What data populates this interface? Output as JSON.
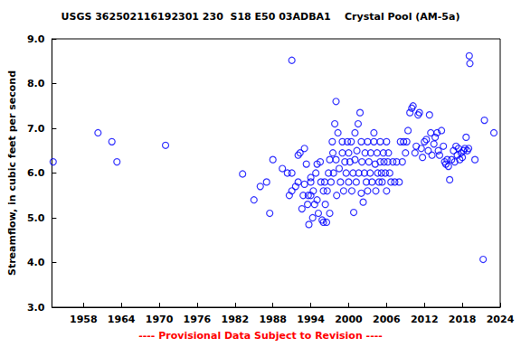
{
  "chart_data": {
    "type": "scatter",
    "title": "USGS 362502116192301 230  S18 E50 03ADBA1    Crystal Pool (AM-5a)",
    "annotation": "---- Provisional Data Subject to Revision ----",
    "y_label": "Streamflow, in cubic feet per second",
    "color": "#0000ff",
    "marker": "open_circle",
    "grid": false,
    "xlim": [
      1953,
      2024
    ],
    "xticks": [
      1958,
      1964,
      1970,
      1976,
      1982,
      1988,
      1994,
      2000,
      2006,
      2012,
      2018,
      2024
    ],
    "ylim": [
      3,
      9
    ],
    "yticks": [
      {
        "value": 3,
        "label": "3.0"
      },
      {
        "value": 4,
        "label": "4.0"
      },
      {
        "value": 5,
        "label": "5.0"
      },
      {
        "value": 6,
        "label": "6.0"
      },
      {
        "value": 7,
        "label": "7.0"
      },
      {
        "value": 8,
        "label": "8.0"
      },
      {
        "value": 9,
        "label": "9.0"
      }
    ],
    "x": [
      1953.2,
      1960.3,
      1962.5,
      1963.3,
      1971,
      1983.2,
      1985,
      1986,
      1987,
      1987.5,
      1988,
      1989.5,
      1990.3,
      1990.6,
      1991,
      1991,
      1991,
      1991.6,
      1992,
      1992,
      1992.3,
      1992.6,
      1992.8,
      1993,
      1993,
      1993.3,
      1993.5,
      1993.6,
      1993.7,
      1994,
      1994,
      1994,
      1994.3,
      1994.4,
      1994.6,
      1994.8,
      1995,
      1995,
      1995.2,
      1995.5,
      1995.6,
      1995.8,
      1996,
      1996,
      1996.2,
      1996.3,
      1996.5,
      1996.6,
      1996.8,
      1997,
      1997,
      1997.2,
      1997.4,
      1997.5,
      1997.6,
      1997.8,
      1998,
      1998,
      1998.1,
      1998.3,
      1998.5,
      1998.7,
      1999,
      1999,
      1999.2,
      1999.4,
      1999.6,
      1999.8,
      2000,
      2000,
      2000.2,
      2000.4,
      2000.5,
      2000.7,
      2000.8,
      2001,
      2001,
      2001.2,
      2001.3,
      2001.5,
      2001.6,
      2001.8,
      2002,
      2002,
      2002.1,
      2002.3,
      2002.5,
      2002.6,
      2002.8,
      2003,
      2003,
      2003.2,
      2003.4,
      2003.5,
      2003.7,
      2004,
      2004,
      2004.2,
      2004.3,
      2004.5,
      2004.6,
      2004.8,
      2005,
      2005,
      2005.2,
      2005.3,
      2005.5,
      2005.6,
      2005.8,
      2006,
      2006,
      2006.2,
      2006.3,
      2006.5,
      2006.7,
      2007,
      2007.3,
      2007.6,
      2008,
      2008.2,
      2008.5,
      2008.7,
      2009,
      2009.2,
      2009.4,
      2009.7,
      2010,
      2010.2,
      2010.5,
      2010.7,
      2011,
      2011.2,
      2011.5,
      2011.7,
      2012,
      2012.3,
      2012.6,
      2012.8,
      2013,
      2013.2,
      2013.5,
      2013.7,
      2014,
      2014.2,
      2014.4,
      2014.7,
      2015,
      2015.2,
      2015.4,
      2015.6,
      2015.8,
      2016,
      2016.3,
      2016.6,
      2016.8,
      2017,
      2017.2,
      2017.4,
      2017.6,
      2017.8,
      2018,
      2018.2,
      2018.4,
      2018.6,
      2018.8,
      2019,
      2019.1,
      2019.2,
      2020,
      2021.3,
      2021.5,
      2023
    ],
    "values": [
      6.25,
      6.9,
      6.7,
      6.25,
      6.62,
      5.98,
      5.4,
      5.7,
      5.8,
      5.1,
      6.3,
      6.1,
      6.0,
      5.5,
      8.52,
      5.6,
      6.0,
      5.7,
      5.8,
      6.4,
      6.45,
      5.2,
      5.5,
      6.55,
      5.75,
      6.2,
      5.3,
      5.5,
      4.85,
      5.9,
      5.8,
      5.5,
      5.0,
      5.6,
      5.3,
      6.0,
      6.2,
      5.4,
      5.1,
      6.25,
      5.8,
      4.95,
      4.9,
      5.6,
      5.8,
      5.3,
      4.9,
      5.6,
      6.0,
      6.3,
      5.1,
      5.8,
      6.7,
      6.45,
      6.0,
      7.1,
      7.6,
      6.3,
      5.5,
      6.9,
      6.1,
      5.8,
      6.45,
      6.7,
      5.6,
      6.25,
      6.0,
      6.7,
      6.45,
      5.8,
      6.25,
      6.7,
      5.6,
      6.0,
      5.12,
      6.9,
      6.3,
      5.8,
      6.5,
      7.1,
      6.0,
      7.35,
      6.7,
      5.55,
      6.25,
      5.35,
      6.0,
      6.45,
      5.8,
      6.7,
      5.6,
      6.25,
      6.0,
      6.45,
      5.8,
      6.9,
      6.7,
      6.2,
      5.6,
      6.45,
      6.0,
      5.8,
      6.7,
      6.25,
      6.0,
      5.8,
      6.45,
      6.25,
      6.0,
      5.6,
      6.7,
      6.25,
      6.45,
      6.0,
      5.8,
      6.25,
      5.8,
      6.25,
      5.8,
      6.7,
      6.25,
      6.7,
      6.45,
      6.7,
      6.95,
      7.35,
      7.45,
      7.5,
      6.45,
      6.6,
      7.3,
      7.35,
      6.55,
      6.35,
      6.7,
      6.75,
      6.5,
      7.3,
      6.9,
      6.4,
      6.65,
      6.8,
      6.9,
      6.5,
      6.4,
      6.95,
      6.6,
      6.25,
      6.2,
      6.3,
      6.15,
      5.85,
      6.3,
      6.5,
      6.25,
      6.6,
      6.4,
      6.55,
      6.3,
      6.45,
      6.35,
      6.5,
      6.55,
      6.8,
      6.5,
      6.55,
      8.62,
      8.45,
      6.3,
      4.07,
      7.18,
      6.9
    ]
  }
}
